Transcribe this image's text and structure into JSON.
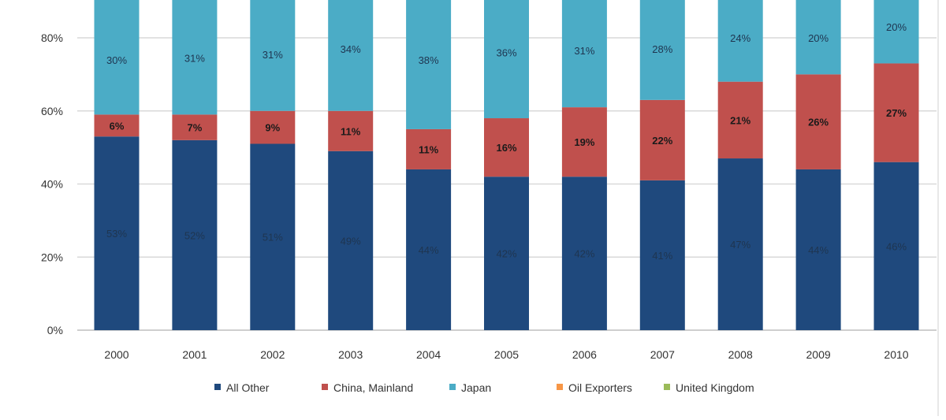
{
  "chart_data": {
    "type": "bar",
    "stacked": true,
    "categories": [
      "2000",
      "2001",
      "2002",
      "2003",
      "2004",
      "2005",
      "2006",
      "2007",
      "2008",
      "2009",
      "2010"
    ],
    "series": [
      {
        "name": "All Other",
        "color": "#1f497d",
        "values": [
          53,
          52,
          51,
          49,
          44,
          42,
          42,
          41,
          47,
          44,
          46
        ]
      },
      {
        "name": "China, Mainland",
        "color": "#c0504d",
        "values": [
          6,
          7,
          9,
          11,
          11,
          16,
          19,
          22,
          21,
          26,
          27
        ]
      },
      {
        "name": "Japan",
        "color": "#4bacc6",
        "values": [
          30,
          31,
          31,
          34,
          38,
          36,
          31,
          28,
          24,
          20,
          20
        ]
      },
      {
        "name": "Oil Exporters",
        "color": "#f79646",
        "values": [
          1,
          0,
          0,
          0,
          0,
          0,
          0,
          0,
          0,
          0,
          0
        ]
      },
      {
        "name": "United Kingdom",
        "color": "#9bbb59",
        "values": [
          0,
          0,
          0,
          0,
          0,
          0,
          0,
          0,
          0,
          0,
          0
        ]
      }
    ],
    "yticks": [
      "0%",
      "20%",
      "40%",
      "60%",
      "80%"
    ],
    "ylim": [
      0,
      100
    ],
    "grid": true,
    "legend_position": "bottom"
  }
}
